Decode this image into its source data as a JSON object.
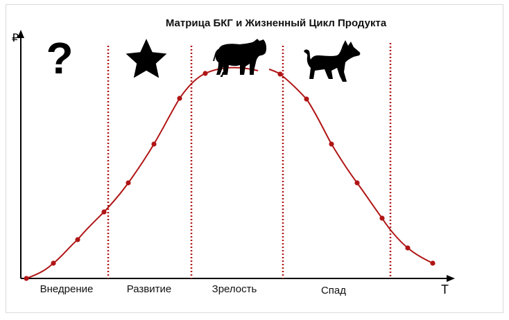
{
  "title": "Матрица БКГ и Жизненный Цикл Продукта",
  "y_axis_symbol": "₽",
  "x_axis_symbol": "T",
  "stages": [
    "Внедрение",
    "Развитие",
    "Зрелость",
    "Спад"
  ],
  "stage_icons": [
    "question-mark-icon",
    "star-icon",
    "cow-icon",
    "dog-icon"
  ],
  "colors": {
    "curve": "#b01515",
    "divider": "#b01515",
    "axis": "#000000",
    "icon": "#000000",
    "text": "#111111"
  }
}
